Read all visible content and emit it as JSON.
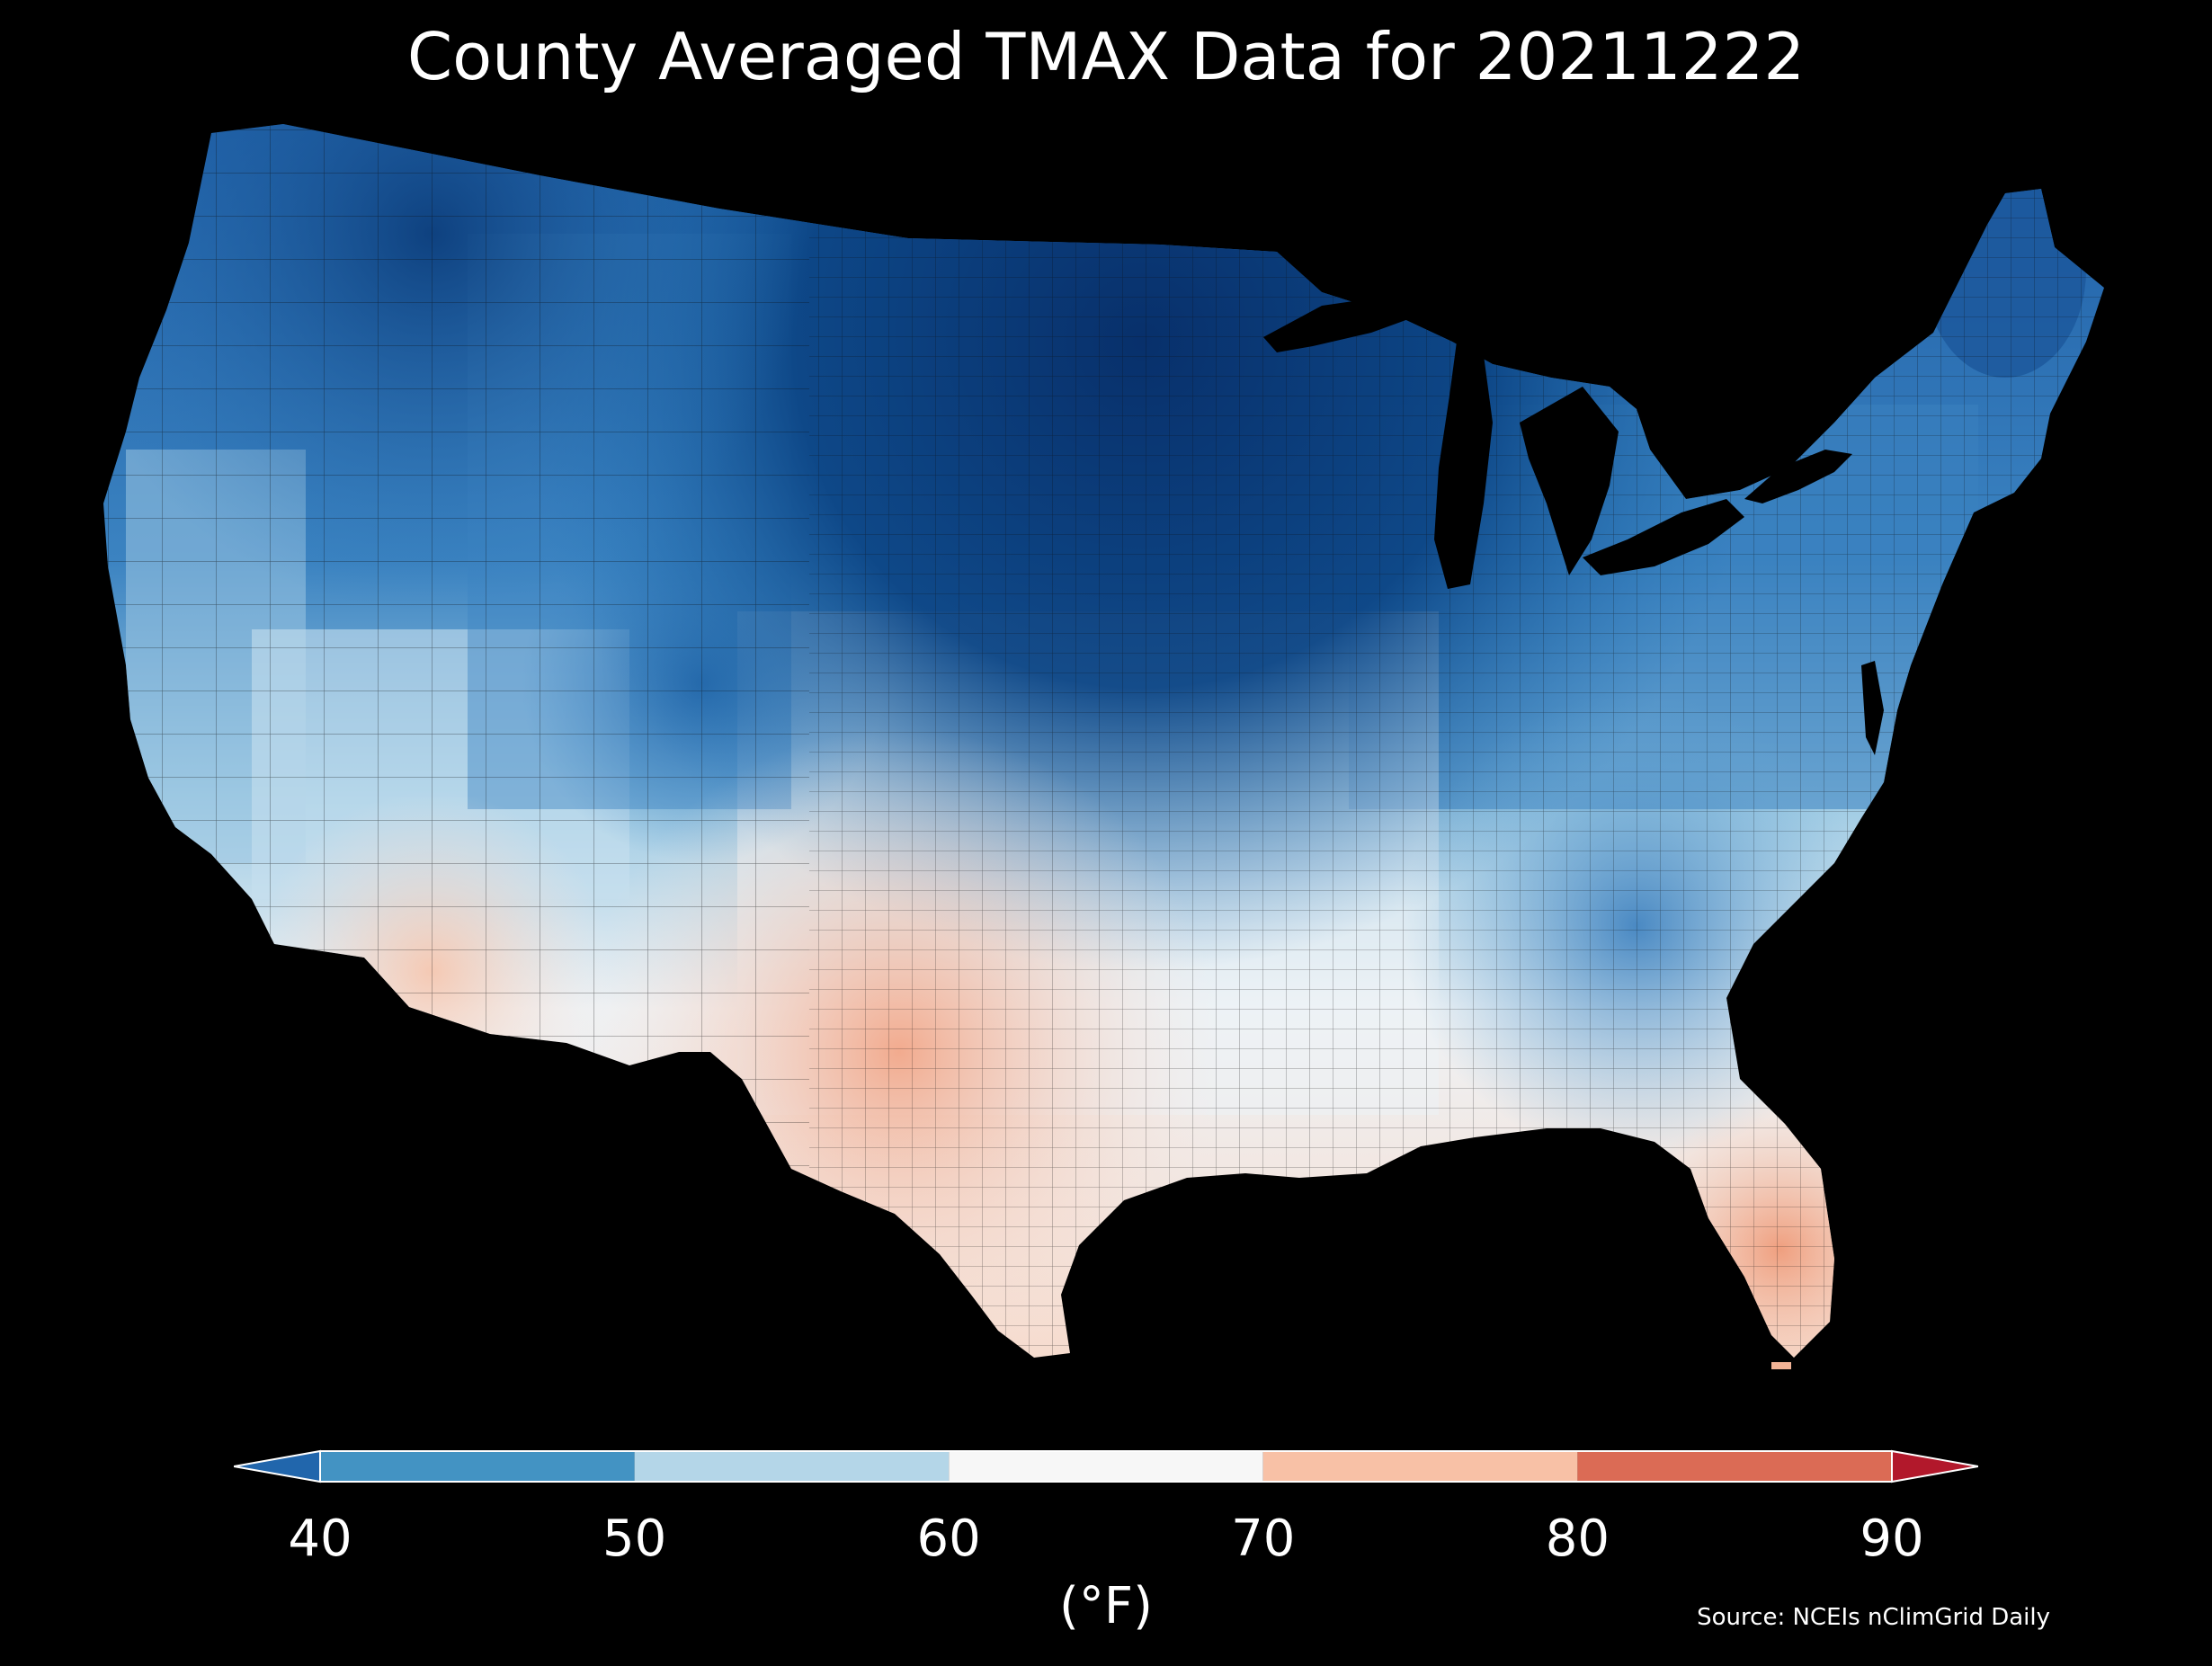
{
  "title": "County Averaged TMAX Data for 20211222",
  "source": "Source: NCEIs nClimGrid Daily",
  "colorbar": {
    "unit_label": "(°F)",
    "ticks": [
      "40",
      "50",
      "60",
      "70",
      "80",
      "90"
    ],
    "bins": [
      {
        "from": 40,
        "to": 50,
        "color": "#4393c3"
      },
      {
        "from": 50,
        "to": 60,
        "color": "#b4d6e8"
      },
      {
        "from": 60,
        "to": 70,
        "color": "#f7f7f7"
      },
      {
        "from": 70,
        "to": 80,
        "color": "#f8c1a6"
      },
      {
        "from": 80,
        "to": 90,
        "color": "#db6b55"
      }
    ],
    "under_color": "#2166ac",
    "over_color": "#b2182b"
  },
  "colors": {
    "background": "#000000",
    "very_cold": "#0b3a6e",
    "cold": "#1f5fa8",
    "cool": "#3d86c4",
    "mild": "#8fc1de",
    "neutral": "#f3f3f3",
    "warm": "#f6d4c4",
    "warmer": "#f2b396",
    "border": "#111111"
  }
}
